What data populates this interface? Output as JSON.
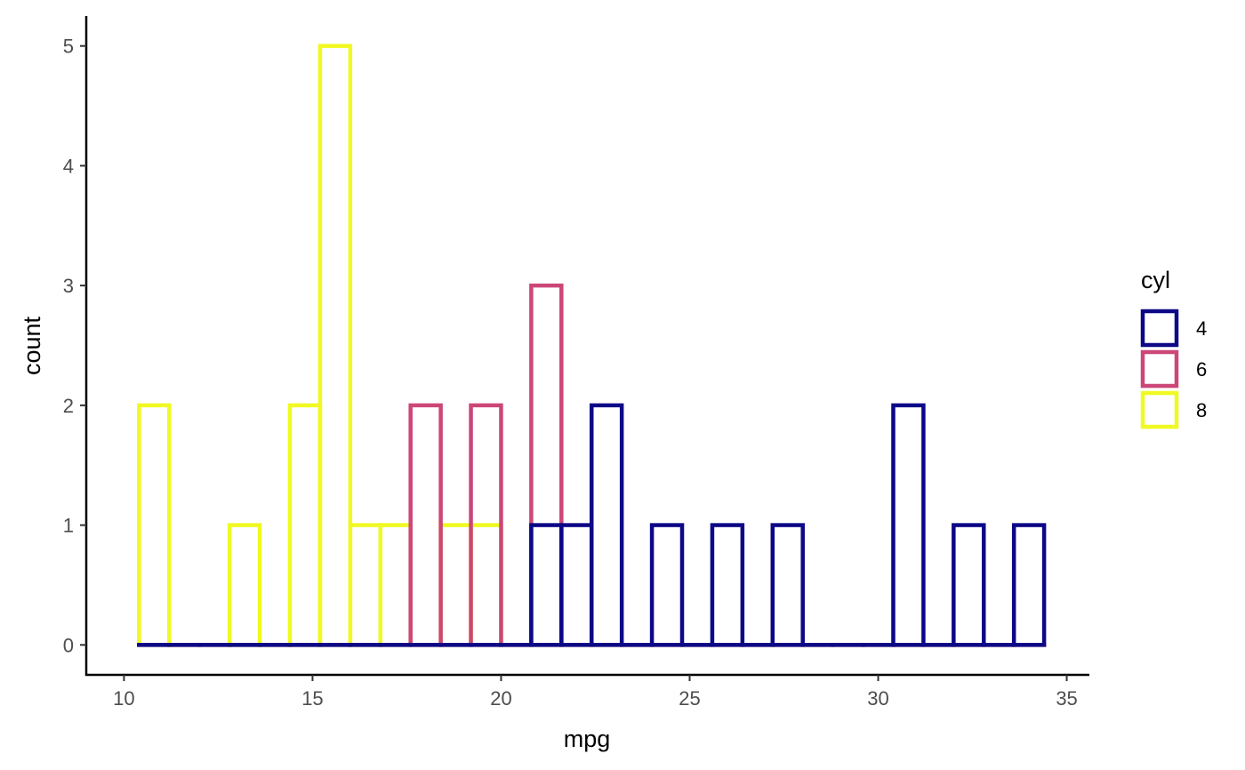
{
  "chart_data": {
    "type": "bar",
    "subtype": "histogram",
    "xlabel": "mpg",
    "ylabel": "count",
    "xlim": [
      9,
      35.6
    ],
    "ylim": [
      -0.25,
      5.25
    ],
    "xticks": [
      10,
      15,
      20,
      25,
      30,
      35
    ],
    "yticks": [
      0,
      1,
      2,
      3,
      4,
      5
    ],
    "grid": false,
    "legend": {
      "title": "cyl",
      "position": "right"
    },
    "bin_start": 10.4,
    "bin_width": 0.8,
    "series": [
      {
        "name": "8",
        "color": "#F0F921",
        "counts": [
          2,
          0,
          0,
          1,
          0,
          2,
          5,
          1,
          1,
          0,
          1,
          1,
          0,
          0,
          0,
          0,
          0,
          0,
          0,
          0,
          0,
          0,
          0,
          0,
          0,
          0,
          0,
          0,
          0,
          0
        ]
      },
      {
        "name": "6",
        "color": "#CC4778",
        "counts": [
          0,
          0,
          0,
          0,
          0,
          0,
          0,
          0,
          0,
          2,
          0,
          2,
          0,
          3,
          0,
          0,
          0,
          0,
          0,
          0,
          0,
          0,
          0,
          0,
          0,
          0,
          0,
          0,
          0,
          0
        ]
      },
      {
        "name": "4",
        "color": "#0D0887",
        "counts": [
          0,
          0,
          0,
          0,
          0,
          0,
          0,
          0,
          0,
          0,
          0,
          0,
          0,
          1,
          1,
          2,
          0,
          1,
          0,
          1,
          0,
          1,
          0,
          0,
          0,
          2,
          0,
          1,
          0,
          1
        ]
      }
    ]
  }
}
